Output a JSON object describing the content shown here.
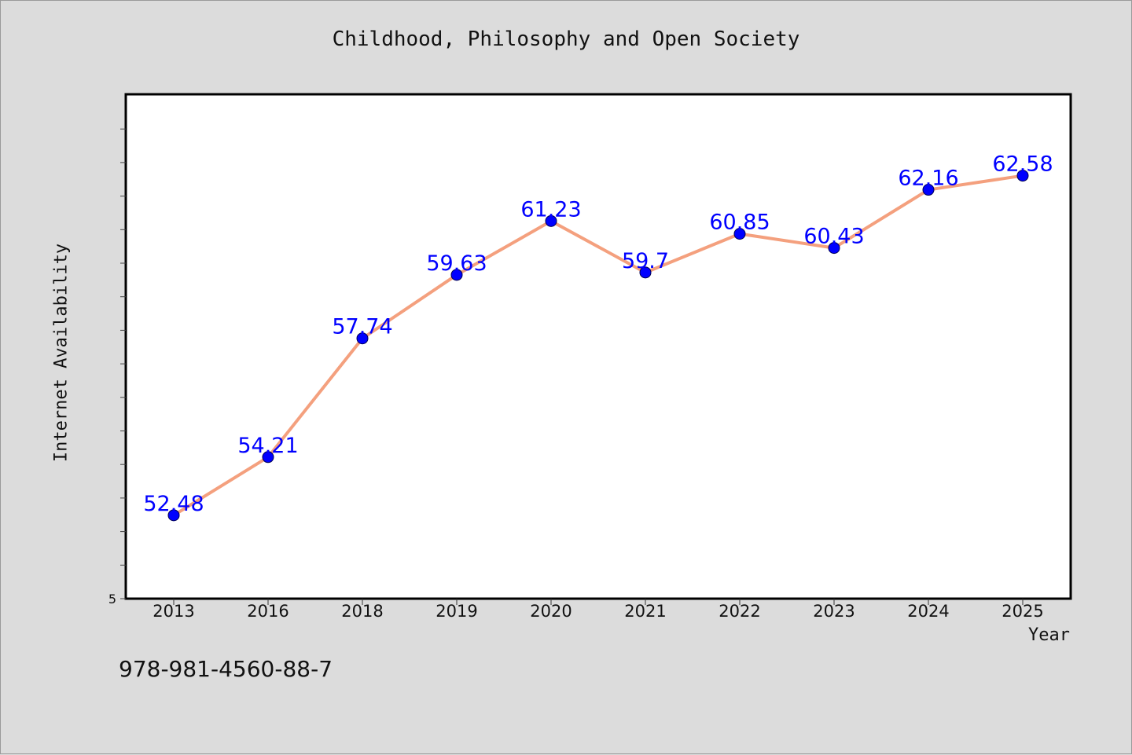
{
  "chart_data": {
    "type": "line",
    "title": "Childhood, Philosophy and Open Society",
    "xlabel": "Year",
    "ylabel": "Internet Availability",
    "categories": [
      "2013",
      "2016",
      "2018",
      "2019",
      "2020",
      "2021",
      "2022",
      "2023",
      "2024",
      "2025"
    ],
    "series": [
      {
        "values": [
          52.48,
          54.21,
          57.74,
          59.63,
          61.23,
          59.7,
          60.85,
          60.43,
          62.16,
          62.58
        ],
        "labels": [
          "52.48",
          "54.21",
          "57.74",
          "59.63",
          "61.23",
          "59.7",
          "60.85",
          "60.43",
          "62.16",
          "62.58"
        ]
      }
    ],
    "y_tick_labels": [
      "5"
    ],
    "ylim": [
      50,
      65
    ],
    "grid": false,
    "legend": "none",
    "colors": {
      "line": "#f4a07e",
      "marker": "#0000ff",
      "data_label": "#0000ff",
      "plot_background": "#ffffff",
      "page_background": "#dcdcdc"
    }
  },
  "footer": {
    "code": "978-981-4560-88-7"
  }
}
